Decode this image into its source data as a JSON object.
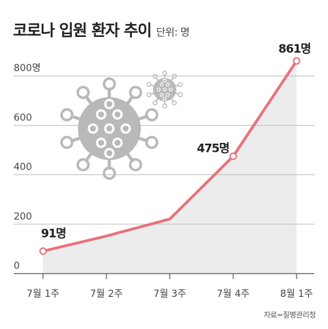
{
  "header": {
    "title": "코로나 입원 환자 추이",
    "unit": "단위: 명"
  },
  "source": "자료=질병관리청",
  "colors": {
    "line": "#e8717b",
    "area": "#ececec",
    "grid": "#bdbdbd",
    "virus": "#b9b9b9"
  },
  "chart_data": {
    "type": "area",
    "title": "코로나 입원 환자 추이",
    "unit": "단위: 명",
    "categories": [
      "7월 1주",
      "7월 2주",
      "7월 3주",
      "7월 4주",
      "8월 1주"
    ],
    "values": [
      91,
      152,
      221,
      475,
      861
    ],
    "ylim": [
      0,
      900
    ],
    "yticks": [
      0,
      200,
      400,
      600,
      800
    ],
    "ytick_labels": [
      "0",
      "200",
      "400",
      "600",
      "800명"
    ],
    "data_labels": [
      {
        "index": 0,
        "text": "91명"
      },
      {
        "index": 3,
        "text": "475명"
      },
      {
        "index": 4,
        "text": "861명"
      }
    ],
    "grid": true
  },
  "decorations": [
    {
      "name": "large-virus-icon"
    },
    {
      "name": "small-virus-icon"
    }
  ]
}
